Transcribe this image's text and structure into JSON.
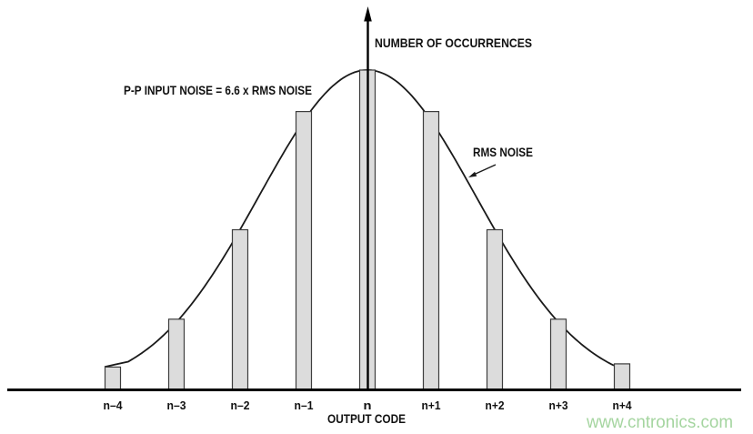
{
  "chart_data": {
    "type": "bar",
    "title": "",
    "categories": [
      "n–4",
      "n–3",
      "n–2",
      "n–1",
      "n",
      "n+1",
      "n+2",
      "n+3",
      "n+4"
    ],
    "values": [
      0.07,
      0.22,
      0.5,
      0.87,
      1.0,
      0.87,
      0.5,
      0.22,
      0.08
    ],
    "xlabel": "OUTPUT CODE",
    "ylabel": "NUMBER OF OCCURRENCES",
    "curve": {
      "type": "gaussian",
      "center_category": "n",
      "sigma_codes": 1.7,
      "peak_rel": 1.0
    },
    "annotations": {
      "pp_noise": "P-P INPUT NOISE = 6.6 x RMS NOISE",
      "rms_noise": "RMS NOISE"
    },
    "grid": false,
    "legend": false
  },
  "watermark": {
    "text": "www.cntronics.com",
    "color": "#a5d5a0"
  },
  "colors": {
    "bar_fill": "#dcdcdc",
    "bar_stroke": "#3d3d3d",
    "curve": "#1a1a1a",
    "axis": "#000000",
    "text": "#111111"
  }
}
